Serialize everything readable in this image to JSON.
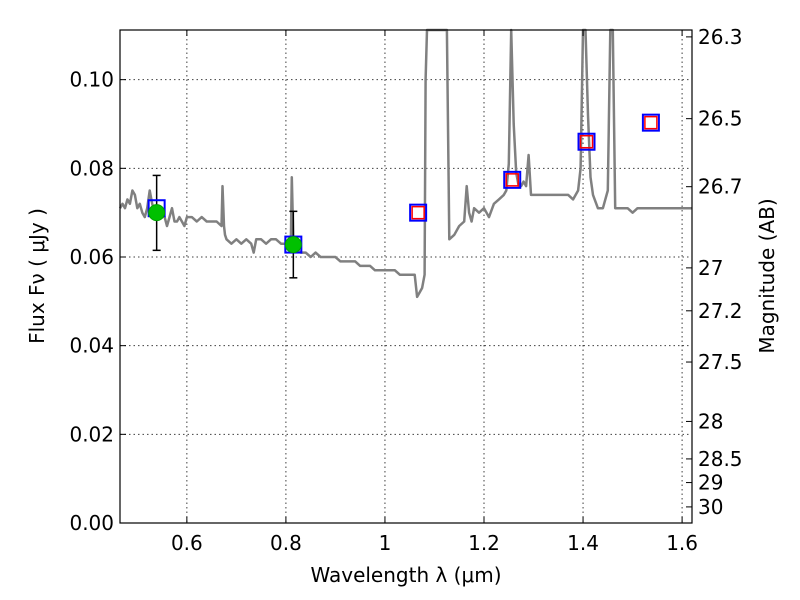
{
  "chart_data": {
    "type": "line",
    "xlabel": "Wavelength  λ (μm)",
    "ylabel": "Flux  Fν  ( μJy )",
    "y2label": "Magnitude (AB)",
    "xlim": [
      0.465,
      1.62
    ],
    "ylim": [
      0.0,
      0.1112
    ],
    "grid": true,
    "x_ticks": [
      0.6,
      0.8,
      1.0,
      1.2,
      1.4,
      1.6
    ],
    "x_tick_labels": [
      "0.6",
      "0.8",
      "1",
      "1.2",
      "1.4",
      "1.6"
    ],
    "y_ticks": [
      0.0,
      0.02,
      0.04,
      0.06,
      0.08,
      0.1
    ],
    "y_tick_labels": [
      "0.00",
      "0.02",
      "0.04",
      "0.06",
      "0.08",
      "0.10"
    ],
    "y2_tick_labels": [
      "26.3",
      "26.5",
      "26.7",
      "27",
      "27.2",
      "27.5",
      "28",
      "28.5",
      "29",
      "30"
    ],
    "colors": {
      "spectrum": "#808080",
      "model_square": "#0000ff",
      "observed_square": "#ff0000",
      "detection": "#00c000",
      "error_bar": "#000000"
    },
    "series": [
      {
        "type": "line",
        "x": [
          0.465,
          0.47,
          0.475,
          0.48,
          0.485,
          0.49,
          0.495,
          0.5,
          0.505,
          0.51,
          0.515,
          0.52,
          0.525,
          0.53,
          0.535,
          0.54,
          0.545,
          0.55,
          0.555,
          0.56,
          0.565,
          0.57,
          0.575,
          0.58,
          0.585,
          0.59,
          0.595,
          0.6,
          0.61,
          0.62,
          0.63,
          0.64,
          0.65,
          0.66,
          0.67,
          0.672,
          0.675,
          0.677,
          0.68,
          0.69,
          0.7,
          0.71,
          0.72,
          0.73,
          0.735,
          0.74,
          0.75,
          0.76,
          0.77,
          0.78,
          0.79,
          0.8,
          0.81,
          0.812,
          0.815,
          0.818,
          0.82,
          0.83,
          0.84,
          0.85,
          0.86,
          0.87,
          0.88,
          0.89,
          0.9,
          0.91,
          0.92,
          0.93,
          0.94,
          0.95,
          0.96,
          0.97,
          0.98,
          0.99,
          1.0,
          1.01,
          1.02,
          1.03,
          1.04,
          1.05,
          1.06,
          1.065,
          1.07,
          1.075,
          1.08,
          1.082,
          1.085,
          1.09,
          1.095,
          1.1,
          1.11,
          1.115,
          1.12,
          1.125,
          1.13,
          1.14,
          1.15,
          1.16,
          1.165,
          1.17,
          1.175,
          1.18,
          1.19,
          1.2,
          1.21,
          1.22,
          1.23,
          1.24,
          1.245,
          1.25,
          1.255,
          1.26,
          1.265,
          1.27,
          1.275,
          1.28,
          1.285,
          1.29,
          1.295,
          1.3,
          1.31,
          1.32,
          1.33,
          1.34,
          1.35,
          1.36,
          1.37,
          1.38,
          1.39,
          1.395,
          1.4,
          1.405,
          1.41,
          1.415,
          1.42,
          1.43,
          1.44,
          1.45,
          1.455,
          1.46,
          1.465,
          1.47,
          1.48,
          1.49,
          1.5,
          1.51,
          1.52,
          1.53,
          1.54,
          1.55,
          1.56,
          1.57,
          1.58,
          1.59,
          1.6,
          1.61,
          1.62
        ],
        "y": [
          0.071,
          0.072,
          0.071,
          0.073,
          0.072,
          0.075,
          0.074,
          0.071,
          0.072,
          0.07,
          0.069,
          0.071,
          0.075,
          0.072,
          0.07,
          0.07,
          0.071,
          0.07,
          0.069,
          0.067,
          0.069,
          0.071,
          0.068,
          0.068,
          0.069,
          0.068,
          0.067,
          0.069,
          0.069,
          0.068,
          0.069,
          0.068,
          0.068,
          0.068,
          0.067,
          0.076,
          0.067,
          0.065,
          0.064,
          0.063,
          0.064,
          0.063,
          0.064,
          0.063,
          0.061,
          0.064,
          0.064,
          0.063,
          0.064,
          0.064,
          0.063,
          0.063,
          0.064,
          0.078,
          0.064,
          0.062,
          0.062,
          0.061,
          0.061,
          0.06,
          0.061,
          0.06,
          0.06,
          0.06,
          0.06,
          0.059,
          0.059,
          0.059,
          0.059,
          0.058,
          0.058,
          0.058,
          0.057,
          0.057,
          0.057,
          0.057,
          0.057,
          0.056,
          0.056,
          0.056,
          0.056,
          0.051,
          0.052,
          0.053,
          0.056,
          0.1,
          0.1112,
          0.1112,
          0.1112,
          0.1112,
          0.1112,
          0.1112,
          0.1112,
          0.1112,
          0.064,
          0.065,
          0.067,
          0.068,
          0.076,
          0.07,
          0.068,
          0.071,
          0.07,
          0.071,
          0.069,
          0.072,
          0.073,
          0.074,
          0.075,
          0.081,
          0.1112,
          0.09,
          0.079,
          0.076,
          0.076,
          0.077,
          0.076,
          0.083,
          0.074,
          0.074,
          0.074,
          0.074,
          0.074,
          0.074,
          0.074,
          0.074,
          0.074,
          0.073,
          0.075,
          0.08,
          0.1112,
          0.1112,
          0.092,
          0.078,
          0.074,
          0.071,
          0.071,
          0.075,
          0.1112,
          0.1112,
          0.071,
          0.071,
          0.071,
          0.071,
          0.07,
          0.071,
          0.071,
          0.071,
          0.071,
          0.071,
          0.071,
          0.071,
          0.071,
          0.071,
          0.071,
          0.071,
          0.071
        ]
      },
      {
        "name": "model-squares",
        "type": "scatter",
        "x": [
          0.539,
          0.815,
          1.067,
          1.257,
          1.407,
          1.537
        ],
        "y": [
          0.071,
          0.0628,
          0.07,
          0.0774,
          0.086,
          0.0903
        ]
      },
      {
        "name": "observed-squares",
        "type": "scatter",
        "x": [
          0.539,
          0.815,
          1.067,
          1.257,
          1.407,
          1.537
        ],
        "y": [
          0.071,
          0.0628,
          0.07,
          0.0774,
          0.086,
          0.0903
        ]
      },
      {
        "name": "detections",
        "type": "scatter",
        "x": [
          0.539,
          0.815
        ],
        "y": [
          0.07,
          0.0628
        ],
        "yerr_low": [
          0.0615,
          0.0553
        ],
        "yerr_high": [
          0.0784,
          0.0703
        ]
      }
    ]
  }
}
